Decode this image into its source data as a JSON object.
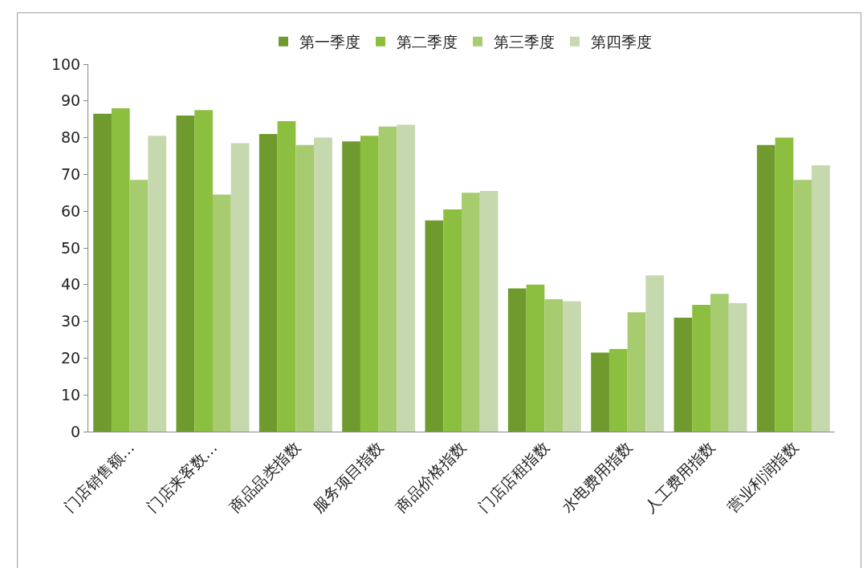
{
  "chart_data": {
    "type": "bar",
    "categories": [
      "门店销售额…",
      "门店来客数…",
      "商品品类指数",
      "服务项目指数",
      "商品价格指数",
      "门店店租指数",
      "水电费用指数",
      "人工费用指数",
      "营业利润指数"
    ],
    "series": [
      {
        "name": "第一季度",
        "color": "#6f9a2e",
        "values": [
          86.5,
          86,
          81,
          79,
          57.5,
          39,
          21.5,
          31,
          78
        ]
      },
      {
        "name": "第二季度",
        "color": "#8cbf3f",
        "values": [
          88,
          87.5,
          84.5,
          80.5,
          60.5,
          40,
          22.5,
          34.5,
          80
        ]
      },
      {
        "name": "第三季度",
        "color": "#a6cc6f",
        "values": [
          68.5,
          64.5,
          78,
          83,
          65,
          36,
          32.5,
          37.5,
          68.5
        ]
      },
      {
        "name": "第四季度",
        "color": "#c6d8ad",
        "values": [
          80.5,
          78.5,
          80,
          83.5,
          65.5,
          35.5,
          42.5,
          35,
          72.5
        ]
      }
    ],
    "ylim": [
      0,
      100
    ],
    "yticks": [
      0,
      10,
      20,
      30,
      40,
      50,
      60,
      70,
      80,
      90,
      100
    ],
    "legend": "top"
  }
}
